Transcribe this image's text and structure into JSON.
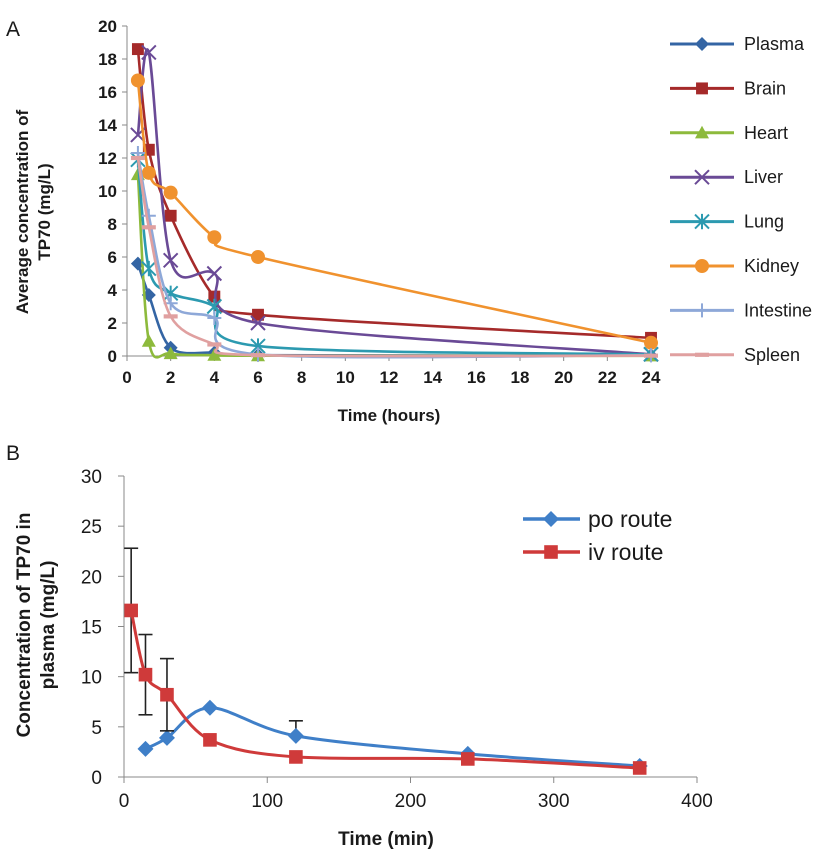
{
  "chart_data": [
    {
      "panel": "A",
      "type": "line",
      "xlabel": "Time (hours)",
      "ylabel_lines": [
        "Average concentration of",
        "TP70 (mg/L)"
      ],
      "xlim": [
        0,
        24
      ],
      "ylim": [
        0,
        20
      ],
      "x_ticks": [
        0,
        2,
        4,
        6,
        8,
        10,
        12,
        14,
        16,
        18,
        20,
        22,
        24
      ],
      "y_ticks": [
        0,
        2,
        4,
        6,
        8,
        10,
        12,
        14,
        16,
        18,
        20
      ],
      "grid": false,
      "legend_position": "right",
      "x": [
        0.5,
        1,
        2,
        4,
        6,
        24
      ],
      "series": [
        {
          "name": "Plasma",
          "color": "#3465a4",
          "marker": "diamond",
          "values": [
            5.6,
            3.7,
            0.5,
            0.2,
            0.05,
            0.02
          ]
        },
        {
          "name": "Brain",
          "color": "#a52a2a",
          "marker": "square",
          "values": [
            18.6,
            12.5,
            8.5,
            3.6,
            2.5,
            1.1
          ]
        },
        {
          "name": "Heart",
          "color": "#8dba3c",
          "marker": "triangle",
          "values": [
            11,
            0.9,
            0.15,
            0.05,
            0.02,
            0.01
          ]
        },
        {
          "name": "Liver",
          "color": "#6a4a96",
          "marker": "x",
          "values": [
            13.4,
            18.4,
            5.8,
            5.0,
            2.0,
            0.1
          ]
        },
        {
          "name": "Lung",
          "color": "#2c9ab0",
          "marker": "asterisk",
          "values": [
            11.9,
            5.3,
            3.8,
            3.0,
            0.6,
            0.1
          ]
        },
        {
          "name": "Kidney",
          "color": "#f0922e",
          "marker": "circle",
          "values": [
            16.7,
            11.1,
            9.9,
            7.2,
            6.0,
            0.8
          ]
        },
        {
          "name": "Intestine",
          "color": "#8ea8d8",
          "marker": "plus",
          "values": [
            12.3,
            8.5,
            3.2,
            2.3,
            0.1,
            0.05
          ]
        },
        {
          "name": "Spleen",
          "color": "#e0a0a0",
          "marker": "dash",
          "values": [
            12.0,
            7.8,
            2.4,
            0.7,
            0.05,
            0.02
          ]
        }
      ]
    },
    {
      "panel": "B",
      "type": "line",
      "xlabel": "Time (min)",
      "ylabel_lines": [
        "Concentration of  TP70 in",
        "plasma (mg/L)"
      ],
      "xlim": [
        0,
        400
      ],
      "ylim": [
        0,
        30
      ],
      "x_ticks": [
        0,
        100,
        200,
        300,
        400
      ],
      "y_ticks": [
        0,
        5,
        10,
        15,
        20,
        25,
        30
      ],
      "grid": false,
      "legend_position": "top-right",
      "series": [
        {
          "name": "po route",
          "color": "#3f7fc8",
          "marker": "diamond",
          "x": [
            15,
            30,
            60,
            120,
            240,
            360
          ],
          "values": [
            2.8,
            3.9,
            6.9,
            4.1,
            2.3,
            1.1
          ],
          "error_upper": [
            0,
            0,
            0,
            1.5,
            0,
            0
          ]
        },
        {
          "name": "iv route",
          "color": "#cf3a3a",
          "marker": "square",
          "x": [
            5,
            15,
            30,
            60,
            120,
            240,
            360
          ],
          "values": [
            16.6,
            10.2,
            8.2,
            3.7,
            2.0,
            1.8,
            0.9
          ],
          "error_upper": [
            6.2,
            4.0,
            3.6,
            0,
            0,
            0,
            0
          ],
          "error_lower": [
            6.2,
            4.0,
            3.6,
            0,
            0,
            0,
            0
          ]
        }
      ]
    }
  ]
}
